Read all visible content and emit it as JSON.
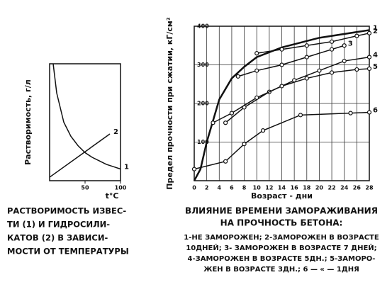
{
  "chart_data": [
    {
      "type": "line",
      "ylabel": "Растворимость, г/л",
      "xlabel": "t°C",
      "xlim": [
        0,
        100
      ],
      "xticks": [
        50,
        100
      ],
      "ylim": [
        0,
        10
      ],
      "caption": [
        "РАСТВОРИМОСТЬ ИЗВЕС-",
        "ТИ (1) И ГИДРОСИЛИ-",
        "КАТОВ (2) В ЗАВИСИ-",
        "МОСТИ ОТ ТЕМПЕРАТУРЫ"
      ],
      "series": [
        {
          "name": "1",
          "color": "#111111",
          "x": [
            5,
            10,
            20,
            30,
            40,
            50,
            60,
            70,
            80,
            90,
            100
          ],
          "values": [
            10,
            7.5,
            5,
            3.8,
            3,
            2.4,
            2,
            1.7,
            1.4,
            1.2,
            1
          ]
        },
        {
          "name": "2",
          "color": "#111111",
          "x": [
            0,
            85
          ],
          "values": [
            0.3,
            4
          ]
        }
      ]
    },
    {
      "type": "line",
      "ylabel": "Предел прочности при сжатии, кГ/см²",
      "xlabel": "Возраст - дни",
      "xlim": [
        0,
        28
      ],
      "xticks": [
        0,
        2,
        4,
        6,
        8,
        10,
        12,
        14,
        16,
        18,
        20,
        22,
        24,
        26,
        28
      ],
      "ylim": [
        0,
        400
      ],
      "yticks": [
        100,
        200,
        300,
        400
      ],
      "grid": true,
      "title": [
        "ВЛИЯНИЕ ВРЕМЕНИ ЗАМОРАЖИВАНИЯ",
        "НА ПРОЧНОСТЬ БЕТОНА:"
      ],
      "notes": [
        "1-НЕ ЗАМОРОЖЕН; 2-ЗАМОРОЖЕН В ВОЗРАСТЕ",
        "10ДНЕЙ; 3- ЗАМОРОЖЕН В ВОЗРАСТЕ 7 ДНЕЙ;",
        "4-ЗАМОРОЖЕН В ВОЗРАСТЕ 5ДН.; 5-ЗАМОРО-",
        "ЖЕН В ВОЗРАСТЕ 3ДН.; 6 — « — 1ДНЯ"
      ],
      "series": [
        {
          "name": "1",
          "color": "#111111",
          "width": 2.5,
          "x": [
            0,
            1,
            2,
            4,
            6,
            8,
            10,
            14,
            20,
            28
          ],
          "values": [
            0,
            30,
            100,
            210,
            265,
            295,
            320,
            345,
            370,
            390
          ]
        },
        {
          "name": "2",
          "color": "#111111",
          "marker": "circle",
          "x": [
            10,
            14,
            18,
            22,
            26,
            28
          ],
          "values": [
            330,
            340,
            350,
            360,
            375,
            382
          ]
        },
        {
          "name": "3",
          "color": "#111111",
          "marker": "circle",
          "x": [
            7,
            10,
            14,
            18,
            22,
            24
          ],
          "values": [
            270,
            285,
            300,
            320,
            340,
            350
          ]
        },
        {
          "name": "4",
          "color": "#111111",
          "marker": "circle",
          "x": [
            5,
            8,
            12,
            16,
            20,
            24,
            28
          ],
          "values": [
            150,
            190,
            230,
            260,
            285,
            310,
            320
          ]
        },
        {
          "name": "5",
          "color": "#111111",
          "marker": "circle",
          "x": [
            3,
            6,
            10,
            14,
            18,
            22,
            26,
            28
          ],
          "values": [
            150,
            175,
            215,
            245,
            265,
            280,
            288,
            290
          ]
        },
        {
          "name": "6",
          "color": "#111111",
          "marker": "circle",
          "x": [
            0,
            5,
            8,
            11,
            17,
            25,
            28
          ],
          "values": [
            30,
            50,
            95,
            130,
            170,
            175,
            177
          ]
        }
      ]
    }
  ]
}
